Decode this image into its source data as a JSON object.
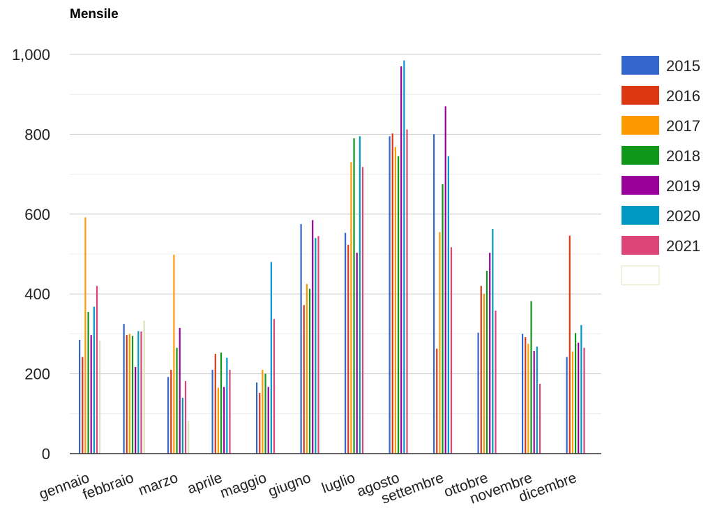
{
  "chart_data": {
    "type": "bar",
    "title": "Mensile",
    "categories": [
      "gennaio",
      "febbraio",
      "marzo",
      "aprile",
      "maggio",
      "giugno",
      "luglio",
      "agosto",
      "settembre",
      "ottobre",
      "novembre",
      "dicembre"
    ],
    "yticks": [
      "0",
      "200",
      "400",
      "600",
      "800",
      "1,000"
    ],
    "ylim": [
      0,
      1000
    ],
    "grid": true,
    "legend_position": "right",
    "series": [
      {
        "name": "2015",
        "color": "#3366cc",
        "values": [
          285,
          325,
          192,
          210,
          178,
          575,
          553,
          795,
          800,
          303,
          300,
          242
        ]
      },
      {
        "name": "2016",
        "color": "#dc3912",
        "values": [
          242,
          297,
          210,
          250,
          152,
          372,
          523,
          802,
          263,
          420,
          292,
          546
        ]
      },
      {
        "name": "2017",
        "color": "#ff9900",
        "values": [
          592,
          300,
          498,
          165,
          210,
          425,
          730,
          768,
          555,
          400,
          275,
          256
        ]
      },
      {
        "name": "2018",
        "color": "#109618",
        "values": [
          355,
          295,
          265,
          253,
          200,
          413,
          790,
          745,
          675,
          458,
          382,
          302
        ]
      },
      {
        "name": "2019",
        "color": "#990099",
        "values": [
          297,
          217,
          315,
          167,
          167,
          585,
          503,
          970,
          870,
          503,
          257,
          278
        ]
      },
      {
        "name": "2020",
        "color": "#0099c6",
        "values": [
          368,
          307,
          140,
          240,
          480,
          540,
          795,
          985,
          745,
          563,
          268,
          322
        ]
      },
      {
        "name": "2021",
        "color": "#dd4477",
        "values": [
          420,
          306,
          182,
          210,
          337,
          545,
          718,
          812,
          517,
          358,
          175,
          265
        ]
      },
      {
        "name": "",
        "color": "#d8e4bc",
        "values": [
          283,
          333,
          82,
          null,
          null,
          null,
          null,
          null,
          null,
          null,
          null,
          null
        ]
      }
    ]
  }
}
